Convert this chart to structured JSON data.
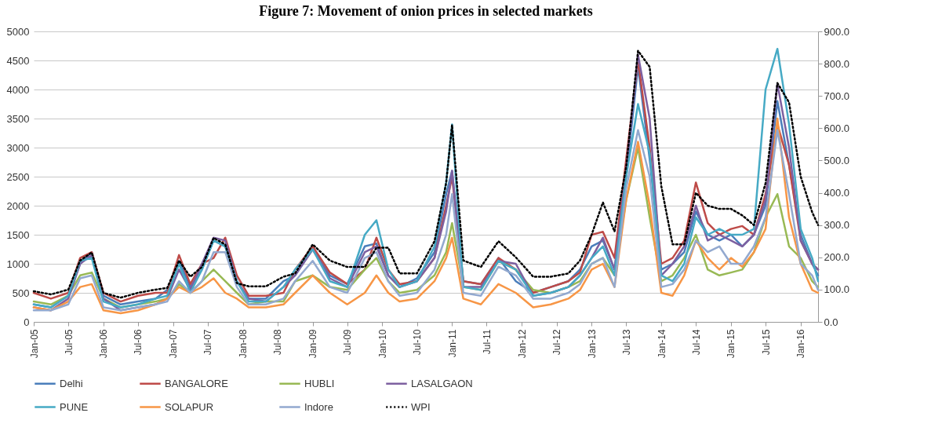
{
  "chart_data": {
    "type": "line",
    "title": "Figure 7: Movement of onion prices in selected markets",
    "x": [
      "2005-01",
      "2005-04",
      "2005-07",
      "2005-09",
      "2005-11",
      "2006-01",
      "2006-04",
      "2006-07",
      "2006-10",
      "2006-12",
      "2007-02",
      "2007-04",
      "2007-06",
      "2007-08",
      "2007-10",
      "2007-12",
      "2008-02",
      "2008-05",
      "2008-08",
      "2008-10",
      "2009-01",
      "2009-04",
      "2009-07",
      "2009-10",
      "2009-12",
      "2010-02",
      "2010-04",
      "2010-07",
      "2010-10",
      "2010-12",
      "2011-01",
      "2011-03",
      "2011-06",
      "2011-09",
      "2011-12",
      "2012-03",
      "2012-06",
      "2012-09",
      "2012-11",
      "2013-01",
      "2013-03",
      "2013-05",
      "2013-07",
      "2013-09",
      "2013-11",
      "2014-01",
      "2014-03",
      "2014-05",
      "2014-07",
      "2014-09",
      "2014-11",
      "2015-01",
      "2015-03",
      "2015-05",
      "2015-07",
      "2015-09",
      "2015-11",
      "2016-01",
      "2016-03",
      "2016-04"
    ],
    "series": [
      {
        "name": "Delhi",
        "color": "#4a7ebb",
        "values": [
          300,
          250,
          450,
          1000,
          1200,
          450,
          300,
          350,
          400,
          550,
          1050,
          600,
          900,
          1400,
          1300,
          700,
          400,
          400,
          700,
          800,
          1250,
          800,
          650,
          1300,
          1350,
          800,
          600,
          750,
          1200,
          2200,
          2600,
          700,
          650,
          1100,
          700,
          500,
          600,
          700,
          900,
          1300,
          1400,
          900,
          2500,
          4400,
          2800,
          900,
          1000,
          1200,
          1900,
          1500,
          1400,
          1500,
          1300,
          1500,
          2000,
          3800,
          2700,
          1500,
          1000,
          800
        ]
      },
      {
        "name": "BANGALORE",
        "color": "#be4b48",
        "values": [
          500,
          400,
          500,
          1100,
          1200,
          500,
          350,
          450,
          500,
          500,
          1150,
          650,
          1000,
          1100,
          1450,
          800,
          450,
          450,
          500,
          900,
          1300,
          850,
          650,
          900,
          1450,
          900,
          650,
          700,
          1100,
          2000,
          2500,
          700,
          650,
          1100,
          900,
          500,
          600,
          700,
          850,
          1500,
          1550,
          1100,
          2800,
          4500,
          3000,
          1000,
          1100,
          1400,
          2400,
          1700,
          1500,
          1600,
          1650,
          1500,
          2200,
          3400,
          2700,
          1400,
          1000,
          900
        ]
      },
      {
        "name": "HUBLI",
        "color": "#98b954",
        "values": [
          350,
          300,
          450,
          800,
          850,
          400,
          250,
          300,
          350,
          400,
          650,
          500,
          700,
          900,
          700,
          500,
          300,
          350,
          350,
          700,
          800,
          600,
          550,
          900,
          1100,
          700,
          500,
          550,
          800,
          1200,
          1700,
          600,
          550,
          1050,
          900,
          550,
          500,
          600,
          700,
          1000,
          1100,
          800,
          2100,
          3000,
          1800,
          700,
          800,
          1100,
          1500,
          900,
          800,
          850,
          900,
          1200,
          1800,
          2200,
          1300,
          1100,
          700,
          600
        ]
      },
      {
        "name": "LASALGAON",
        "color": "#7d60a0",
        "values": [
          250,
          200,
          400,
          1000,
          1150,
          400,
          200,
          250,
          300,
          400,
          900,
          550,
          1000,
          1450,
          1400,
          700,
          400,
          350,
          600,
          800,
          1250,
          750,
          600,
          1200,
          1300,
          800,
          600,
          700,
          1100,
          1900,
          2600,
          600,
          600,
          1050,
          1000,
          450,
          500,
          600,
          800,
          1100,
          1450,
          900,
          2600,
          4600,
          3500,
          800,
          1000,
          1300,
          2000,
          1400,
          1500,
          1400,
          1300,
          1500,
          2100,
          4100,
          3000,
          1400,
          1000,
          900
        ]
      },
      {
        "name": "PUNE",
        "color": "#46aac5",
        "values": [
          300,
          250,
          450,
          1050,
          1100,
          350,
          250,
          300,
          400,
          450,
          1000,
          500,
          900,
          1400,
          1300,
          700,
          350,
          350,
          600,
          900,
          1250,
          700,
          600,
          1500,
          1750,
          900,
          600,
          700,
          1300,
          2400,
          3400,
          600,
          550,
          1050,
          900,
          450,
          500,
          600,
          800,
          1100,
          1300,
          800,
          2500,
          3750,
          2900,
          800,
          700,
          1000,
          1800,
          1500,
          1600,
          1500,
          1500,
          1600,
          4000,
          4700,
          3400,
          1600,
          1100,
          700
        ]
      },
      {
        "name": "SOLAPUR",
        "color": "#f79646",
        "values": [
          250,
          200,
          350,
          600,
          650,
          200,
          150,
          200,
          300,
          400,
          600,
          500,
          600,
          750,
          500,
          400,
          250,
          250,
          300,
          500,
          800,
          500,
          300,
          500,
          800,
          500,
          350,
          400,
          700,
          1100,
          1450,
          400,
          300,
          650,
          500,
          250,
          300,
          400,
          550,
          900,
          1000,
          600,
          2100,
          3100,
          2000,
          500,
          450,
          800,
          1400,
          1100,
          900,
          1100,
          950,
          1200,
          1600,
          3500,
          1800,
          1000,
          550,
          500
        ]
      },
      {
        "name": "Indore",
        "color": "#93a9cf",
        "values": [
          200,
          200,
          300,
          750,
          800,
          250,
          200,
          250,
          300,
          350,
          700,
          500,
          700,
          1200,
          1200,
          600,
          300,
          300,
          400,
          700,
          1050,
          600,
          500,
          1100,
          1200,
          700,
          450,
          500,
          900,
          1500,
          2200,
          500,
          450,
          950,
          800,
          400,
          400,
          500,
          650,
          1000,
          1100,
          600,
          2300,
          3300,
          2500,
          600,
          650,
          900,
          1400,
          1200,
          1300,
          1000,
          1000,
          1300,
          1800,
          3300,
          2200,
          1000,
          800,
          550
        ]
      },
      {
        "name": "WPI",
        "color": "#000000",
        "axis": "y2",
        "line_style": "dotted",
        "values": [
          95,
          85,
          100,
          190,
          215,
          90,
          75,
          90,
          100,
          105,
          190,
          140,
          170,
          260,
          240,
          120,
          110,
          110,
          140,
          150,
          240,
          190,
          170,
          170,
          230,
          230,
          150,
          150,
          250,
          430,
          610,
          190,
          170,
          250,
          200,
          140,
          140,
          150,
          190,
          270,
          370,
          280,
          480,
          840,
          790,
          420,
          240,
          240,
          400,
          360,
          350,
          350,
          330,
          300,
          430,
          740,
          680,
          450,
          340,
          300
        ]
      }
    ],
    "xlim": [
      "2005-01",
      "2016-04"
    ],
    "xticks": [
      {
        "value": "2005-01",
        "label": "Jan-05"
      },
      {
        "value": "2005-07",
        "label": "Jul-05"
      },
      {
        "value": "2006-01",
        "label": "Jan-06"
      },
      {
        "value": "2006-07",
        "label": "Jul-06"
      },
      {
        "value": "2007-01",
        "label": "Jan-07"
      },
      {
        "value": "2007-07",
        "label": "Jul-07"
      },
      {
        "value": "2008-01",
        "label": "Jan-08"
      },
      {
        "value": "2008-07",
        "label": "Jul-08"
      },
      {
        "value": "2009-01",
        "label": "Jan-09"
      },
      {
        "value": "2009-07",
        "label": "Jul-09"
      },
      {
        "value": "2010-01",
        "label": "Jan-10"
      },
      {
        "value": "2010-07",
        "label": "Jul-10"
      },
      {
        "value": "2011-01",
        "label": "Jan-11"
      },
      {
        "value": "2011-07",
        "label": "Jul-11"
      },
      {
        "value": "2012-01",
        "label": "Jan-12"
      },
      {
        "value": "2012-07",
        "label": "Jul-12"
      },
      {
        "value": "2013-01",
        "label": "Jan-13"
      },
      {
        "value": "2013-07",
        "label": "Jul-13"
      },
      {
        "value": "2014-01",
        "label": "Jan-14"
      },
      {
        "value": "2014-07",
        "label": "Jul-14"
      },
      {
        "value": "2015-01",
        "label": "Jan-15"
      },
      {
        "value": "2015-07",
        "label": "Jul-15"
      },
      {
        "value": "2016-01",
        "label": "Jan-16"
      }
    ],
    "ylim": [
      0,
      5000
    ],
    "yticks": [
      0,
      500,
      1000,
      1500,
      2000,
      2500,
      3000,
      3500,
      4000,
      4500,
      5000
    ],
    "y2lim": [
      0,
      900
    ],
    "y2ticks": [
      {
        "value": 0,
        "label": "0.0"
      },
      {
        "value": 100,
        "label": "100.0"
      },
      {
        "value": 200,
        "label": "200.0"
      },
      {
        "value": 300,
        "label": "300.0"
      },
      {
        "value": 400,
        "label": "400.0"
      },
      {
        "value": 500,
        "label": "500.0"
      },
      {
        "value": 600,
        "label": "600.0"
      },
      {
        "value": 700,
        "label": "700.0"
      },
      {
        "value": 800,
        "label": "800.0"
      },
      {
        "value": 900,
        "label": "900.0"
      }
    ],
    "grid": "y",
    "legend": "bottom",
    "line_style": "solid"
  }
}
